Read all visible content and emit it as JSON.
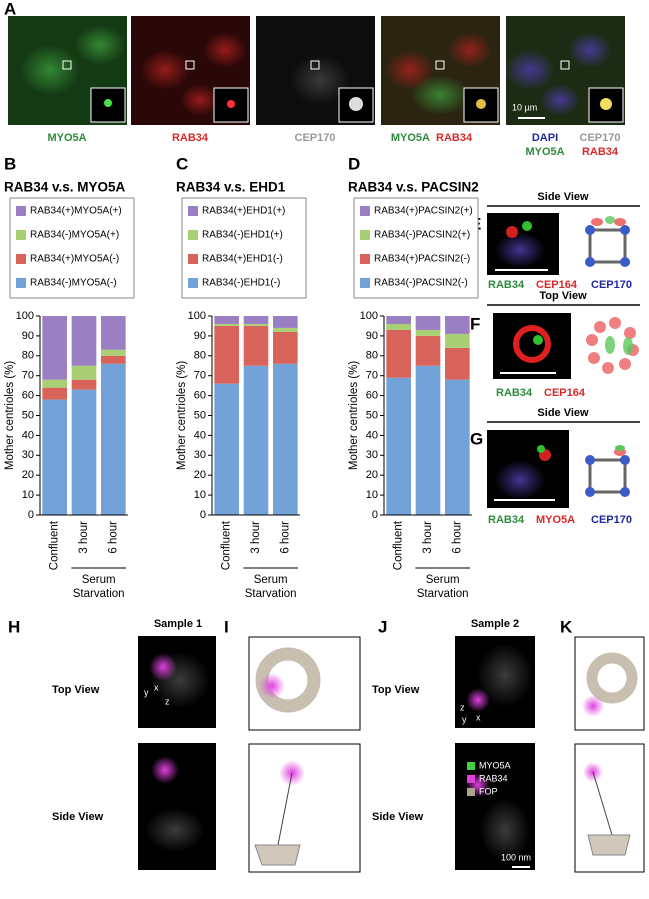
{
  "panel_a": {
    "letter": "A",
    "labels": [
      "MYO5A",
      "RAB34",
      "CEP170"
    ],
    "merge1": [
      "MYO5A",
      "RAB34"
    ],
    "merge2": [
      "DAPI",
      "CEP170",
      "MYO5A",
      "RAB34"
    ],
    "scale": "10 µm"
  },
  "chart_data": [
    {
      "type": "bar",
      "stacked": true,
      "panel": "B",
      "title": "RAB34 v.s. MYO5A",
      "ylabel": "Mother centrioles (%)",
      "categories": [
        "Confluent",
        "3 hour",
        "6 hour"
      ],
      "group_label": [
        "Serum",
        "Starvation"
      ],
      "ylim": [
        0,
        100
      ],
      "yticks": [
        0,
        10,
        20,
        30,
        40,
        50,
        60,
        70,
        80,
        90,
        100
      ],
      "series": [
        {
          "name": "RAB34(+)MYO5A(+)",
          "color": "#9a80c2",
          "values": [
            32,
            25,
            17
          ]
        },
        {
          "name": "RAB34(-)MYO5A(+)",
          "color": "#a9cf74",
          "values": [
            4,
            7,
            3
          ]
        },
        {
          "name": "RAB34(+)MYO5A(-)",
          "color": "#d8635a",
          "values": [
            6,
            5,
            4
          ]
        },
        {
          "name": "RAB34(-)MYO5A(-)",
          "color": "#72a2d8",
          "values": [
            58,
            63,
            76
          ]
        }
      ]
    },
    {
      "type": "bar",
      "stacked": true,
      "panel": "C",
      "title": "RAB34 v.s. EHD1",
      "ylabel": "Mother centrioles (%)",
      "categories": [
        "Confluent",
        "3 hour",
        "6 hour"
      ],
      "group_label": [
        "Serum",
        "Starvation"
      ],
      "ylim": [
        0,
        100
      ],
      "yticks": [
        0,
        10,
        20,
        30,
        40,
        50,
        60,
        70,
        80,
        90,
        100
      ],
      "series": [
        {
          "name": "RAB34(+)EHD1(+)",
          "color": "#9a80c2",
          "values": [
            4,
            4,
            6
          ]
        },
        {
          "name": "RAB34(-)EHD1(+)",
          "color": "#a9cf74",
          "values": [
            1,
            1,
            2
          ]
        },
        {
          "name": "RAB34(+)EHD1(-)",
          "color": "#d8635a",
          "values": [
            29,
            20,
            16
          ]
        },
        {
          "name": "RAB34(-)EHD1(-)",
          "color": "#72a2d8",
          "values": [
            66,
            75,
            76
          ]
        }
      ]
    },
    {
      "type": "bar",
      "stacked": true,
      "panel": "D",
      "title": "RAB34 v.s. PACSIN2",
      "ylabel": "Mother centrioles (%)",
      "categories": [
        "Confluent",
        "3 hour",
        "6 hour"
      ],
      "group_label": [
        "Serum",
        "Starvation"
      ],
      "ylim": [
        0,
        100
      ],
      "yticks": [
        0,
        10,
        20,
        30,
        40,
        50,
        60,
        70,
        80,
        90,
        100
      ],
      "series": [
        {
          "name": "RAB34(+)PACSIN2(+)",
          "color": "#9a80c2",
          "values": [
            4,
            7,
            9
          ]
        },
        {
          "name": "RAB34(-)PACSIN2(+)",
          "color": "#a9cf74",
          "values": [
            3,
            3,
            7
          ]
        },
        {
          "name": "RAB34(+)PACSIN2(-)",
          "color": "#d8635a",
          "values": [
            24,
            15,
            16
          ]
        },
        {
          "name": "RAB34(-)PACSIN2(-)",
          "color": "#72a2d8",
          "values": [
            69,
            75,
            68
          ]
        }
      ]
    }
  ],
  "panel_e": {
    "letter": "E",
    "view": "Side View",
    "labels": [
      "RAB34",
      "CEP164",
      "CEP170"
    ]
  },
  "panel_f": {
    "letter": "F",
    "view": "Top View",
    "labels": [
      "RAB34",
      "CEP164"
    ]
  },
  "panel_g": {
    "letter": "G",
    "view": "Side View",
    "labels": [
      "RAB34",
      "MYO5A",
      "CEP170"
    ]
  },
  "panel_h": {
    "letter": "H",
    "sample": "Sample 1",
    "views": [
      "Top View",
      "Side View"
    ],
    "axes": [
      "y",
      "x",
      "z"
    ]
  },
  "panel_i": {
    "letter": "I"
  },
  "panel_j": {
    "letter": "J",
    "sample": "Sample 2",
    "views": [
      "Top View",
      "Side View"
    ],
    "axes": [
      "z",
      "y",
      "x"
    ],
    "legend": [
      "MYO5A",
      "RAB34",
      "FOP"
    ],
    "scale": "100 nm"
  },
  "panel_k": {
    "letter": "K"
  }
}
